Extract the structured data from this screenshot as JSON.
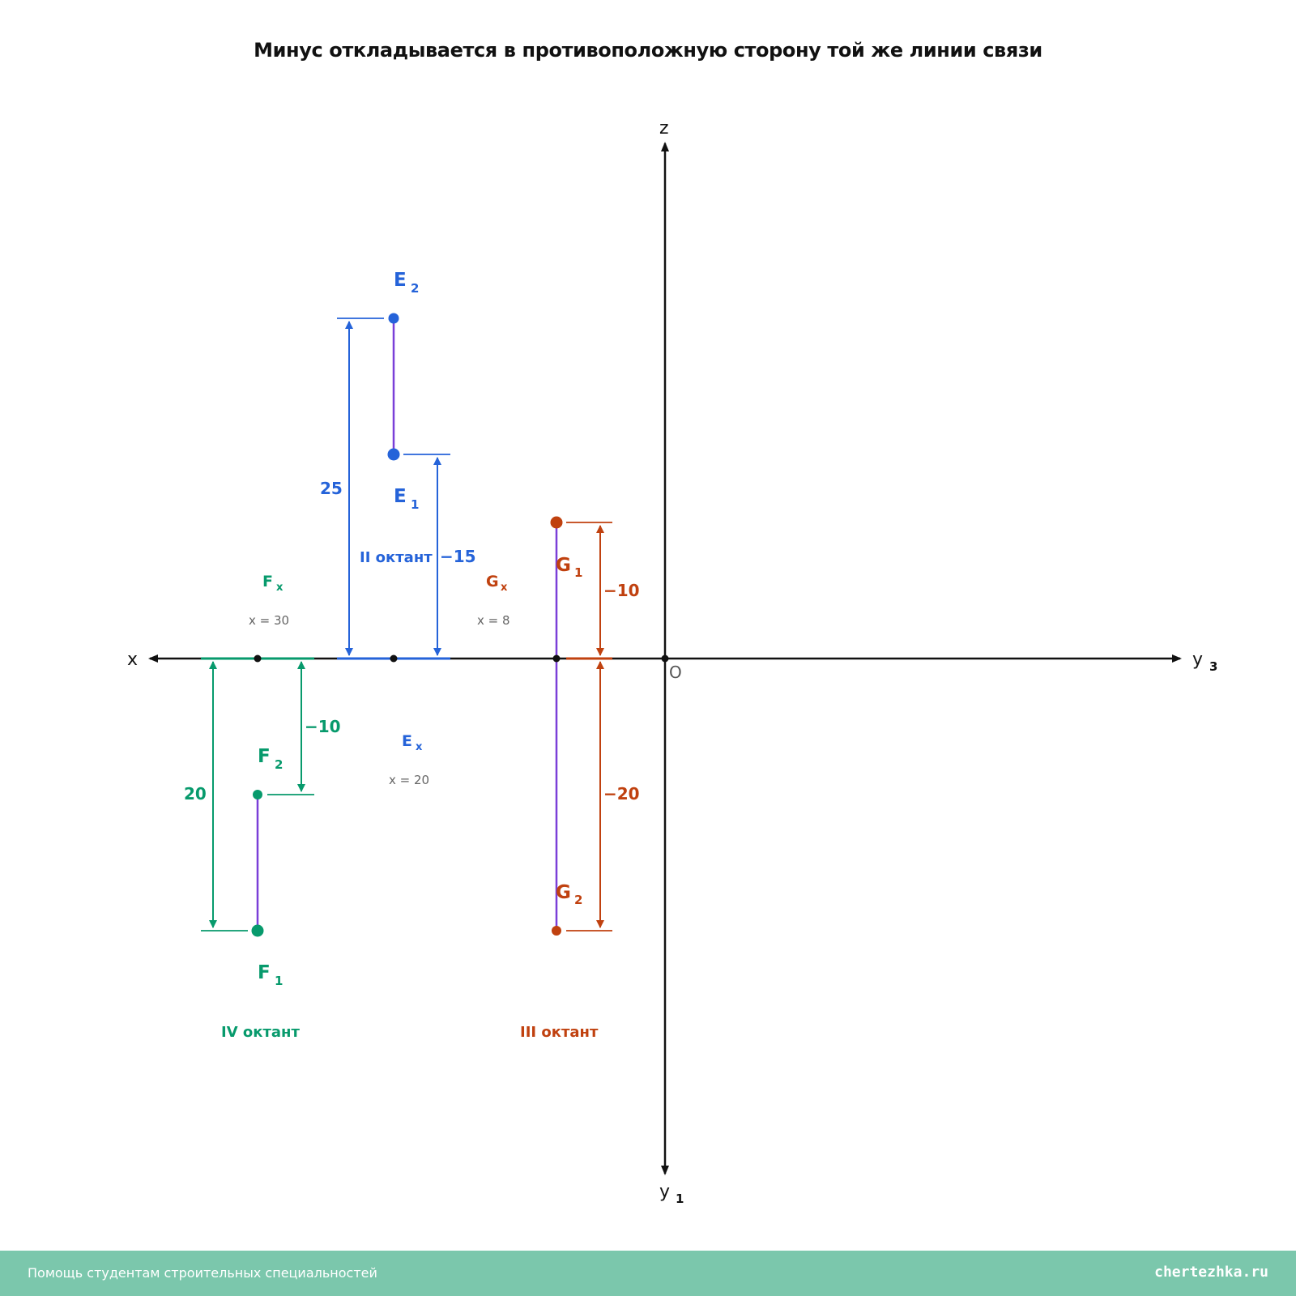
{
  "title": "Минус откладывается в противоположную сторону той же линии связи",
  "axes": {
    "x": "x",
    "z": "z",
    "y3": "y",
    "y3_sub": "3",
    "y1": "y",
    "y1_sub": "1",
    "origin": "O"
  },
  "points": {
    "E": {
      "E2": {
        "letter": "E",
        "sub": "2"
      },
      "E1": {
        "letter": "E",
        "sub": "1"
      },
      "Ex": {
        "letter": "E",
        "sub": "x"
      },
      "x_note": "x = 20",
      "dim_z": "25",
      "dim_y": "−15",
      "octant": "II октант",
      "color": "#2563d9"
    },
    "F": {
      "F2": {
        "letter": "F",
        "sub": "2"
      },
      "F1": {
        "letter": "F",
        "sub": "1"
      },
      "Fx": {
        "letter": "F",
        "sub": "x"
      },
      "x_note": "x = 30",
      "dim_z": "−10",
      "dim_y": "20",
      "octant": "IV октант",
      "color": "#079a6c"
    },
    "G": {
      "G1": {
        "letter": "G",
        "sub": "1"
      },
      "G2": {
        "letter": "G",
        "sub": "2"
      },
      "Gx": {
        "letter": "G",
        "sub": "x"
      },
      "x_note": "x = 8",
      "dim_y": "−10",
      "dim_z": "−20",
      "octant": "III октант",
      "color": "#c0410f"
    }
  },
  "link_line_color": "#7a3fd8",
  "footer": {
    "left": "Помощь студентам строительных специальностей",
    "right": "chertezhka.ru"
  }
}
